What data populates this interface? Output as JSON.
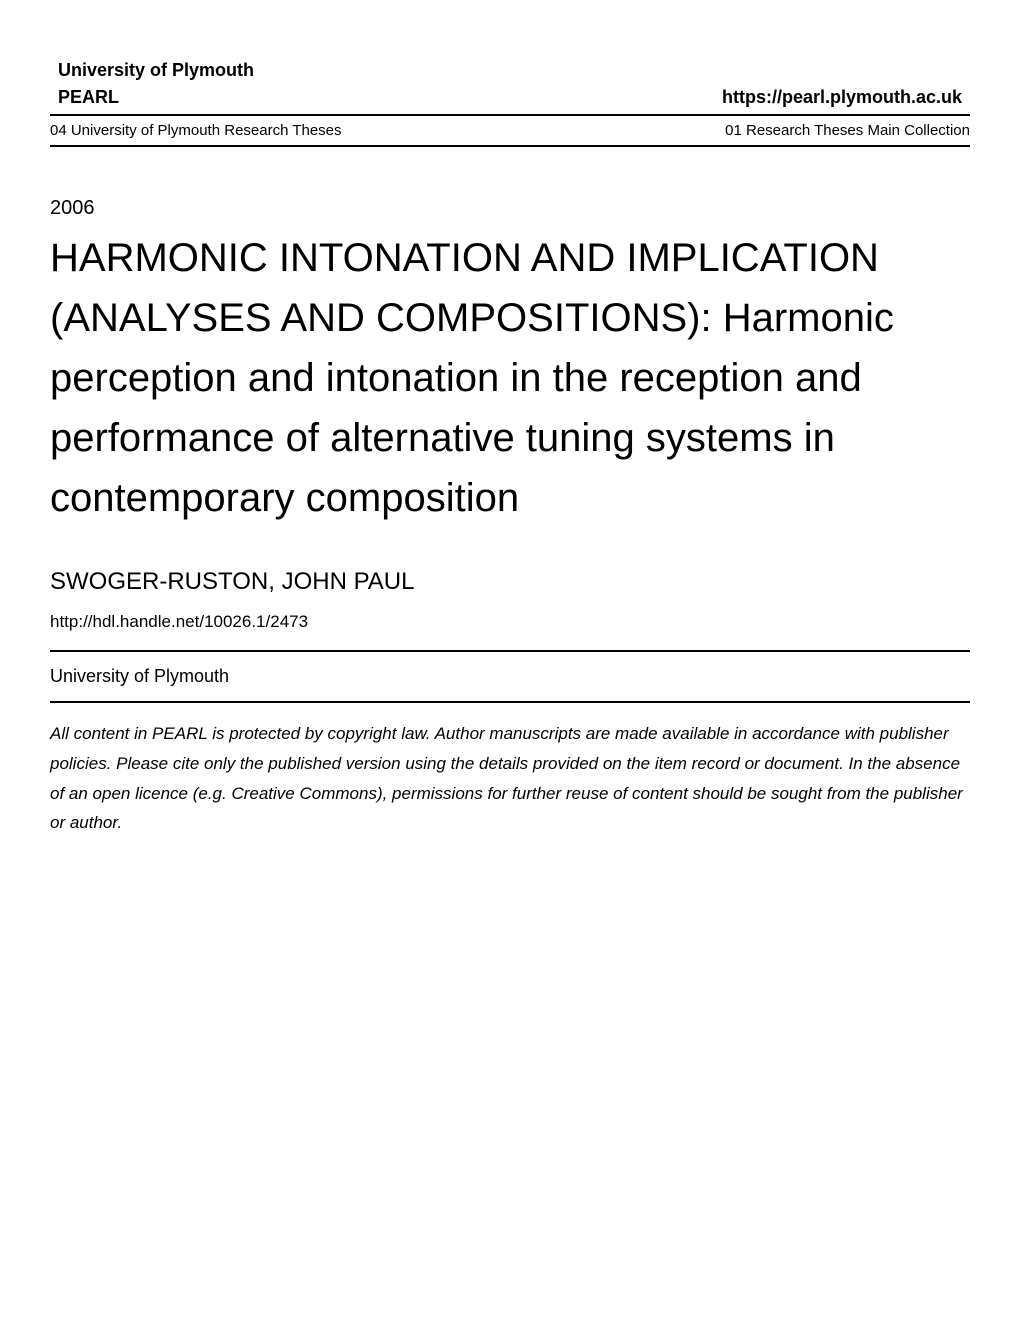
{
  "header": {
    "university": "University of Plymouth",
    "repository": "PEARL",
    "url": "https://pearl.plymouth.ac.uk",
    "collection_left": "04 University of Plymouth Research Theses",
    "collection_right": "01 Research Theses Main Collection"
  },
  "year": "2006",
  "title": "HARMONIC INTONATION AND IMPLICATION (ANALYSES AND COMPOSITIONS): Harmonic perception and intonation in the reception and performance of alternative tuning systems in contemporary composition",
  "author": "SWOGER-RUSTON, JOHN PAUL",
  "handle_url": "http://hdl.handle.net/10026.1/2473",
  "institution": "University of Plymouth",
  "copyright": "All content in PEARL is protected by copyright law. Author manuscripts are made available in accordance with publisher policies. Please cite only the published version using the details provided on the item record or document. In the absence of an open licence (e.g. Creative Commons), permissions for further reuse of content should be sought from the publisher or author."
}
